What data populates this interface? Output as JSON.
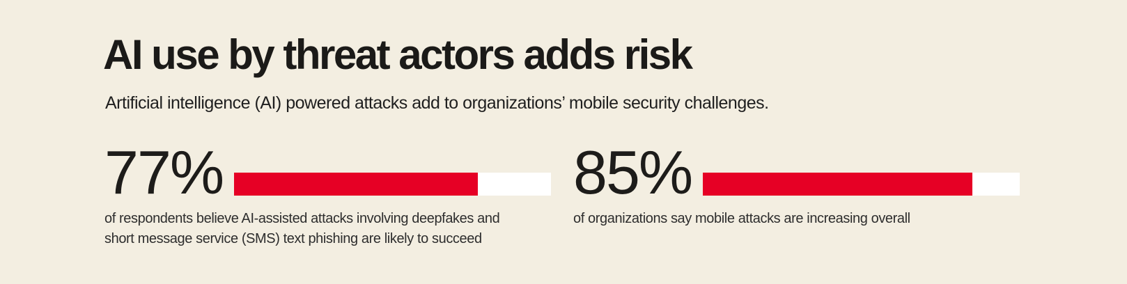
{
  "colors": {
    "background": "#f3eee1",
    "accent": "#e60025",
    "bar_track": "#ffffff",
    "text": "#1b1a18"
  },
  "header": {
    "title": "AI use by threat actors adds risk",
    "subtitle": "Artificial intelligence (AI) powered attacks add to organizations’ mobile security challenges."
  },
  "stats": [
    {
      "value": "77%",
      "percent": 77,
      "description_lines": [
        "of respondents believe AI-assisted attacks involving deepfakes and",
        "short message service (SMS) text phishing are likely to succeed"
      ]
    },
    {
      "value": "85%",
      "percent": 85,
      "description_lines": [
        "of organizations say mobile attacks are increasing overall"
      ]
    }
  ],
  "chart_data": {
    "type": "bar",
    "orientation": "horizontal",
    "title": "AI use by threat actors adds risk",
    "subtitle": "Artificial intelligence (AI) powered attacks add to organizations’ mobile security challenges.",
    "categories": [
      "of respondents believe AI-assisted attacks involving deepfakes and short message service (SMS) text phishing are likely to succeed",
      "of organizations say mobile attacks are increasing overall"
    ],
    "values": [
      77,
      85
    ],
    "value_labels": [
      "77%",
      "85%"
    ],
    "xlabel": "",
    "ylabel": "",
    "xlim": [
      0,
      100
    ],
    "grid": false,
    "legend": false
  }
}
